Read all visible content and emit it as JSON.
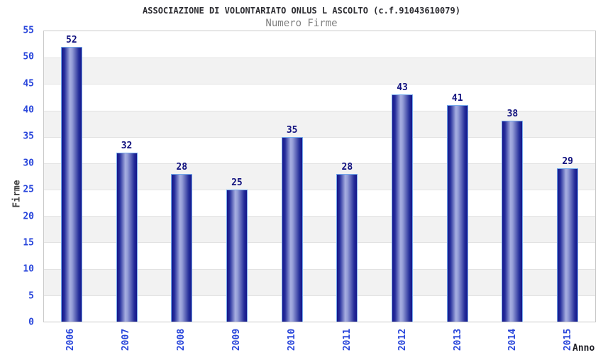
{
  "chart_data": {
    "type": "bar",
    "title": "ASSOCIAZIONE DI VOLONTARIATO ONLUS L ASCOLTO (c.f.91043610079)",
    "subtitle": "Numero Firme",
    "categories": [
      "2006",
      "2007",
      "2008",
      "2009",
      "2010",
      "2011",
      "2012",
      "2013",
      "2014",
      "2015"
    ],
    "values": [
      52,
      32,
      28,
      25,
      35,
      28,
      43,
      41,
      38,
      29
    ],
    "xlabel": "Anno",
    "ylabel": "Firme",
    "ylim": [
      0,
      55
    ],
    "yticks": [
      0,
      5,
      10,
      15,
      20,
      25,
      30,
      35,
      40,
      45,
      50,
      55
    ],
    "grid": "horizontal-bands-alternating",
    "legend": "none",
    "colors": {
      "bar_edge": "#15158a",
      "bar_center": "#a7afe1",
      "bar_border": "#74aaec",
      "tick_label": "#2946db",
      "value_label": "#10107e",
      "axis_label": "#3f3f3f",
      "band_gray": "#f2f2f2",
      "plot_border": "#c9c9c9",
      "title": "#2c2c31",
      "subtitle": "#808080"
    }
  }
}
